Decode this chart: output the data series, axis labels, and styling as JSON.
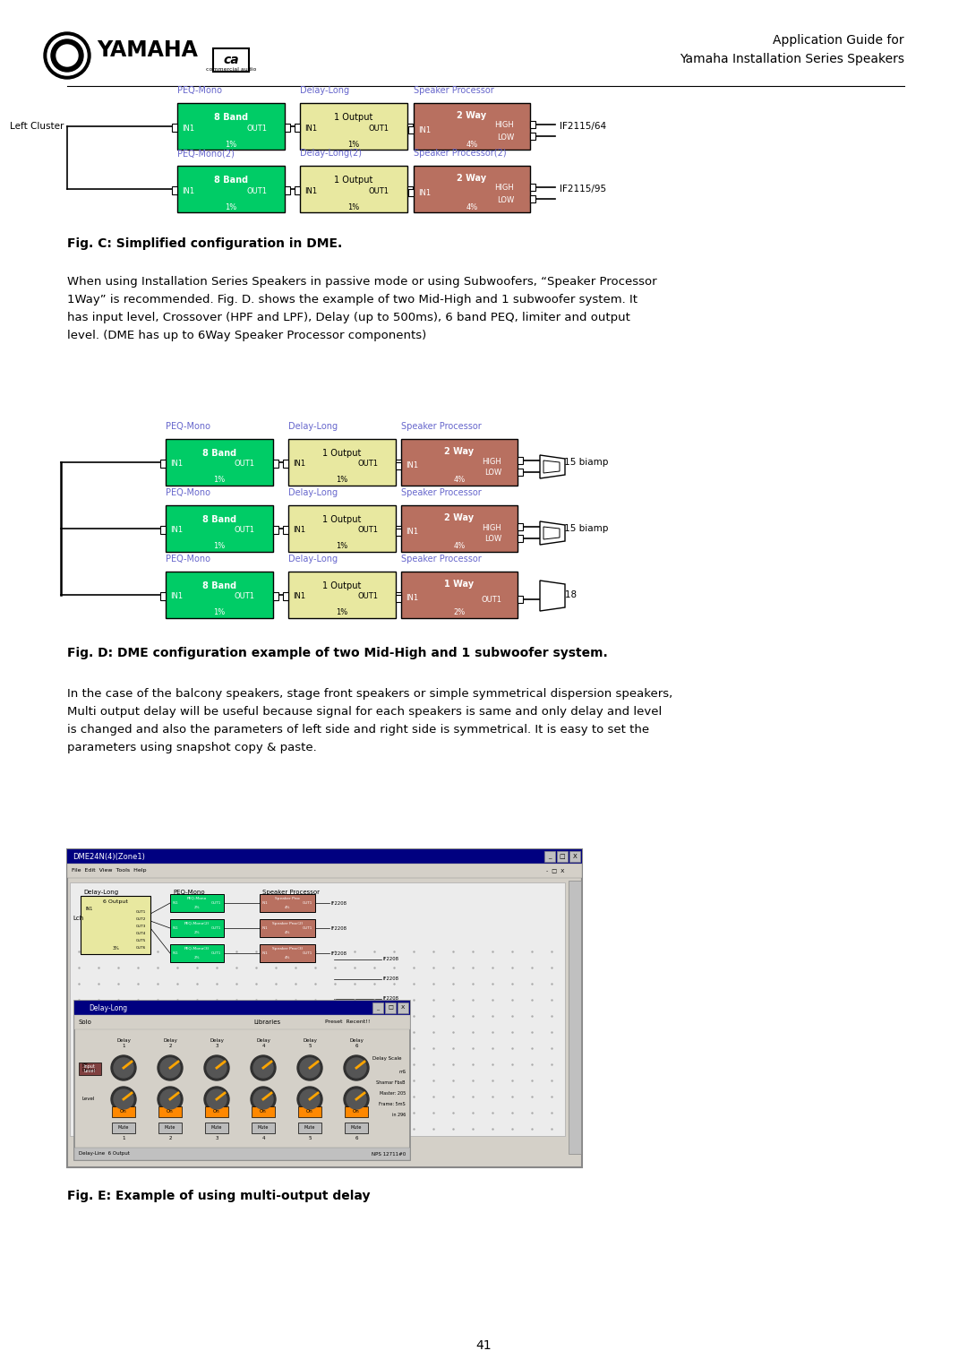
{
  "page_bg": "#ffffff",
  "header_right_text": "Application Guide for\nYamaha Installation Series Speakers",
  "fig_c_caption": "Fig. C: Simplified configuration in DME.",
  "fig_d_caption": "Fig. D: DME configuration example of two Mid-High and 1 subwoofer system.",
  "fig_e_caption": "Fig. E: Example of using multi-output delay",
  "page_number": "41",
  "body_text_1": "When using Installation Series Speakers in passive mode or using Subwoofers, “Speaker Processor\n1Way” is recommended. Fig. D. shows the example of two Mid-High and 1 subwoofer system. It\nhas input level, Crossover (HPF and LPF), Delay (up to 500ms), 6 band PEQ, limiter and output\nlevel. (DME has up to 6Way Speaker Processor components)",
  "body_text_2": "In the case of the balcony speakers, stage front speakers or simple symmetrical dispersion speakers,\nMulti output delay will be useful because signal for each speakers is same and only delay and level\nis changed and also the parameters of left side and right side is symmetrical. It is easy to set the\nparameters using snapshot copy & paste.",
  "green_color": "#00cc66",
  "yellow_color": "#e8e8a0",
  "brown_color": "#b87060",
  "label_color": "#6666cc",
  "text_color": "#000000"
}
